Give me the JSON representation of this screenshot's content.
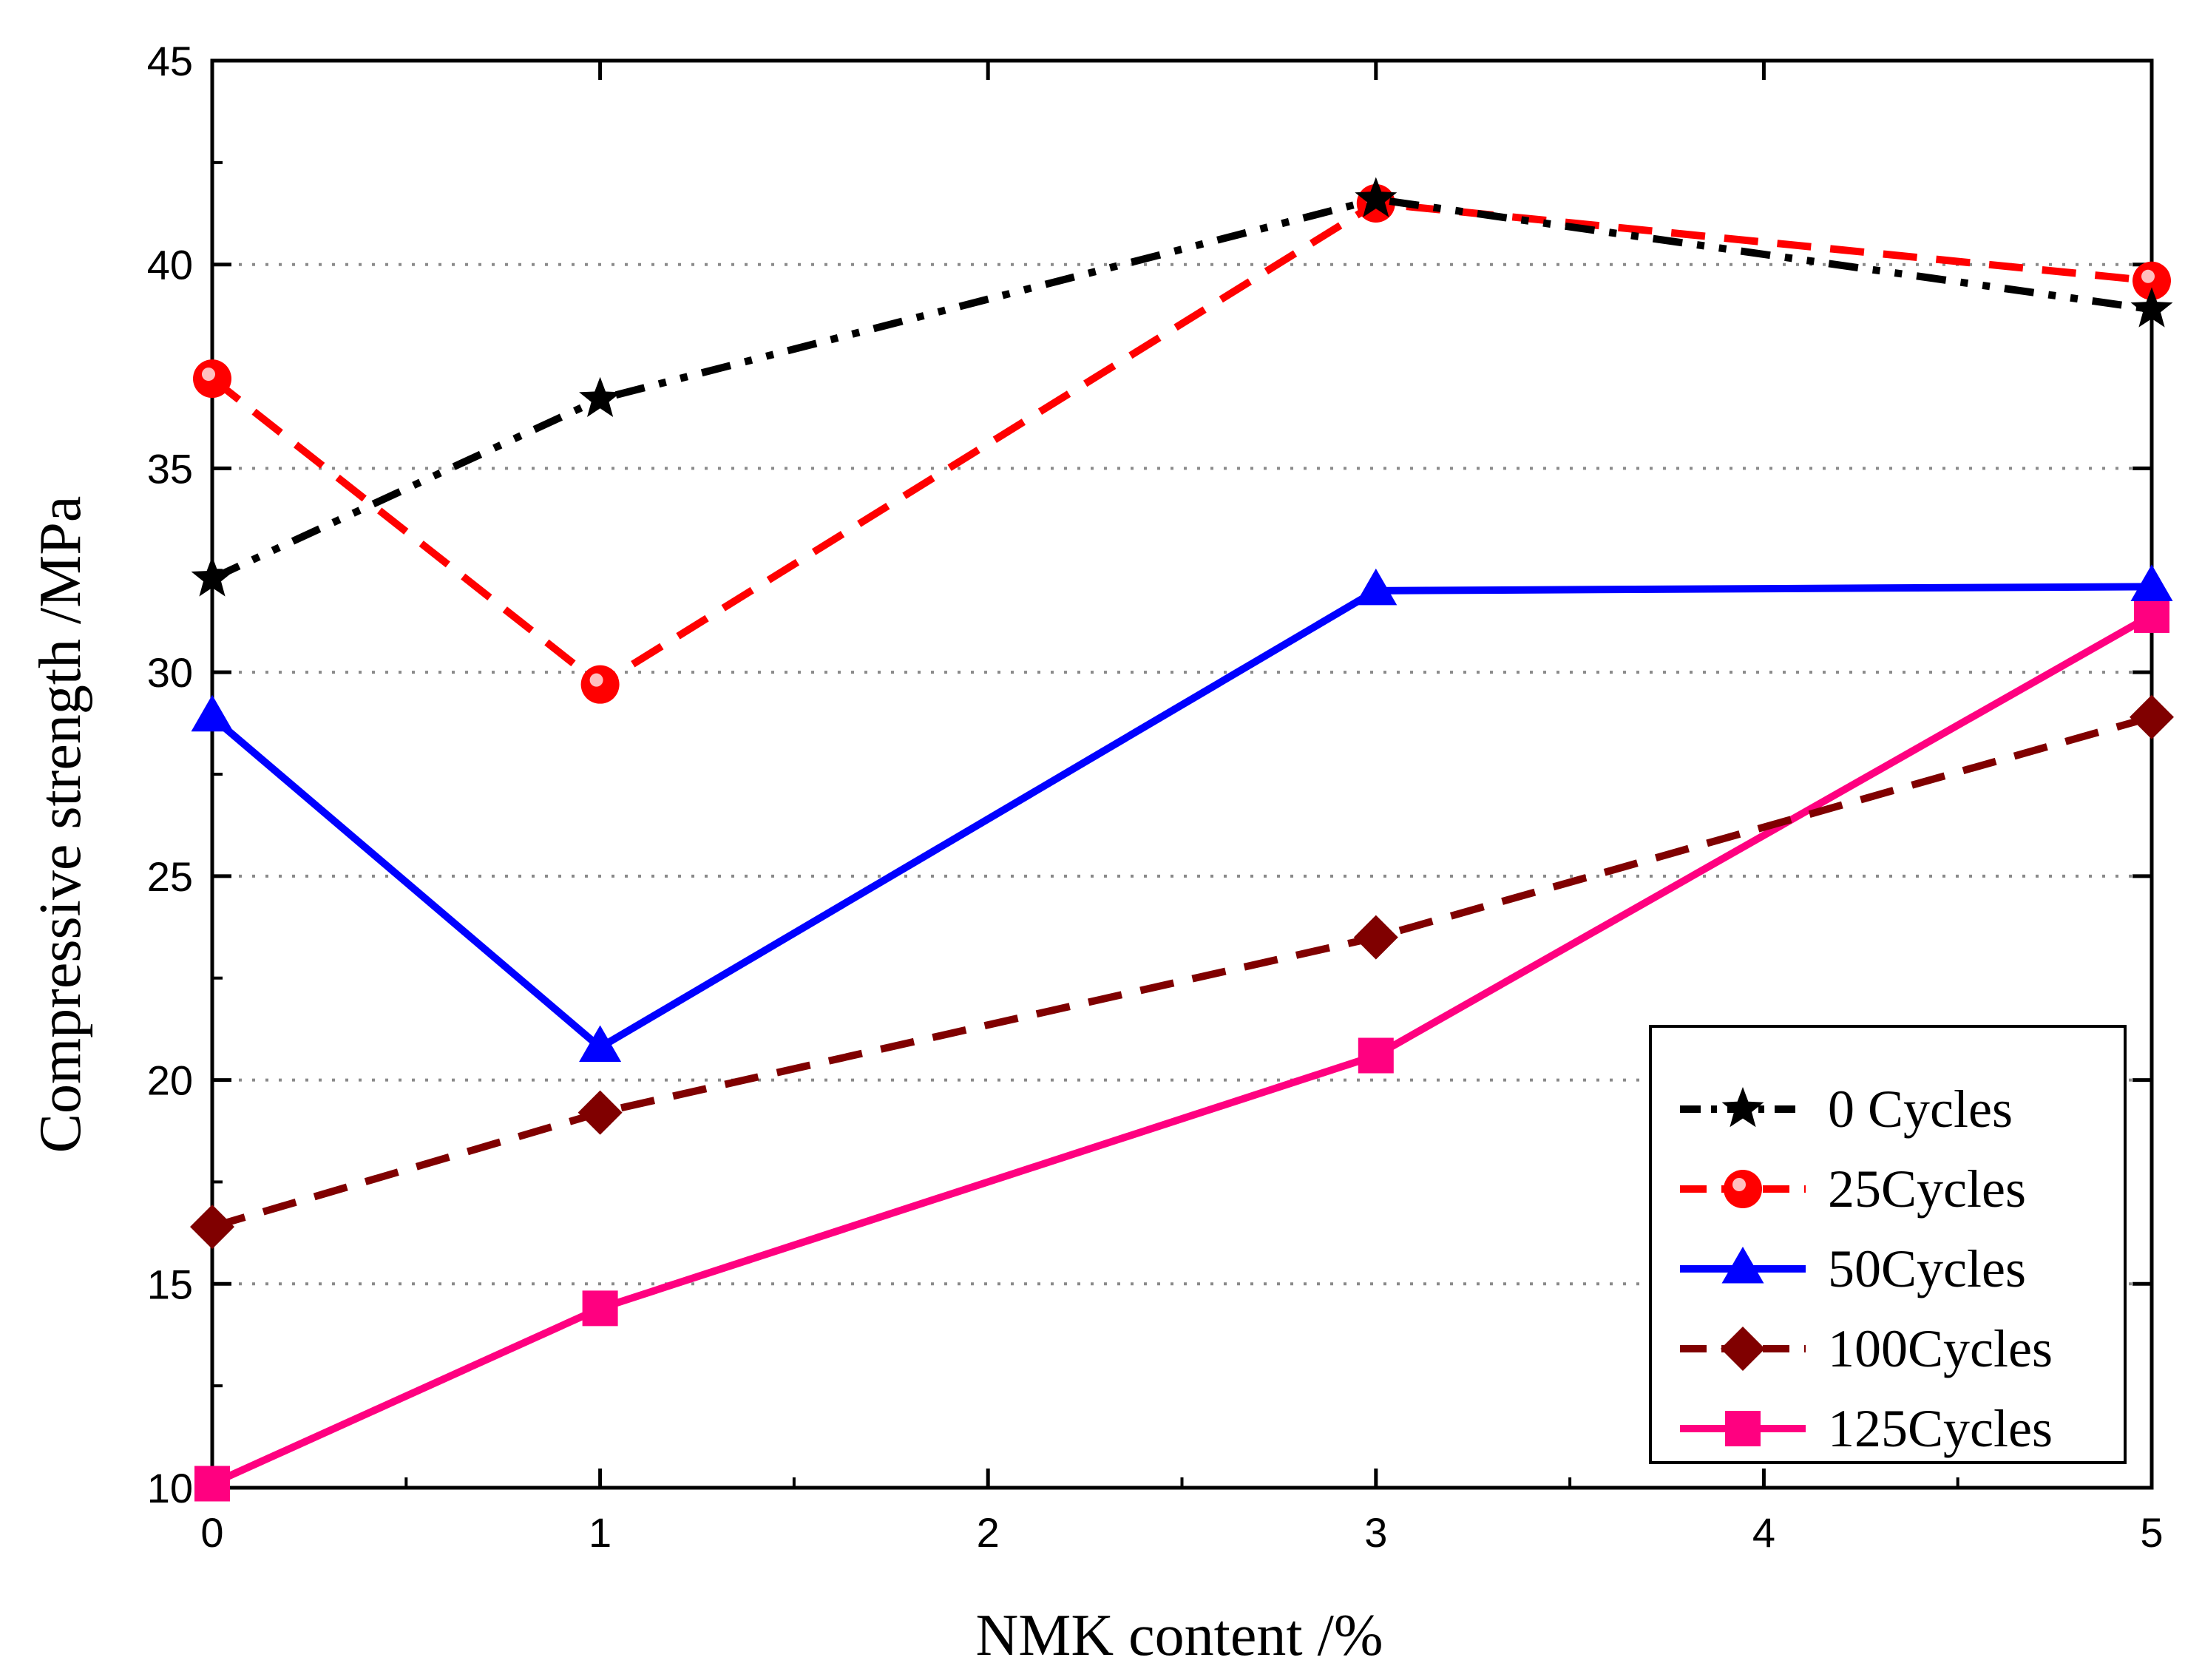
{
  "chart_data": {
    "type": "line",
    "title": "",
    "xlabel": "NMK content /%",
    "ylabel": "Compressive strength  /MPa",
    "xlim": [
      0,
      5
    ],
    "ylim": [
      10,
      45
    ],
    "xticks": [
      0,
      1,
      2,
      3,
      4,
      5
    ],
    "yticks": [
      10,
      15,
      20,
      25,
      30,
      35,
      40,
      45
    ],
    "grid": "horizontal dotted",
    "legend_position": "bottom-right",
    "x": [
      0,
      1,
      3,
      5
    ],
    "series": [
      {
        "name": "0 Cycles",
        "values": [
          32.3,
          36.7,
          41.6,
          38.9
        ],
        "color": "#000000",
        "dash": "dashdotdot",
        "marker": "star"
      },
      {
        "name": "25Cycles",
        "values": [
          37.2,
          29.7,
          41.5,
          39.6
        ],
        "color": "#ff0000",
        "dash": "dash",
        "marker": "circle"
      },
      {
        "name": "50Cycles",
        "values": [
          28.9,
          20.8,
          32.0,
          32.1
        ],
        "color": "#0000ff",
        "dash": "solid",
        "marker": "triangle"
      },
      {
        "name": "100Cycles",
        "values": [
          16.4,
          19.2,
          23.5,
          28.9
        ],
        "color": "#800000",
        "dash": "dash",
        "marker": "diamond"
      },
      {
        "name": "125Cycles",
        "values": [
          10.1,
          14.4,
          20.6,
          31.4
        ],
        "color": "#ff0080",
        "dash": "solid",
        "marker": "square"
      }
    ]
  }
}
